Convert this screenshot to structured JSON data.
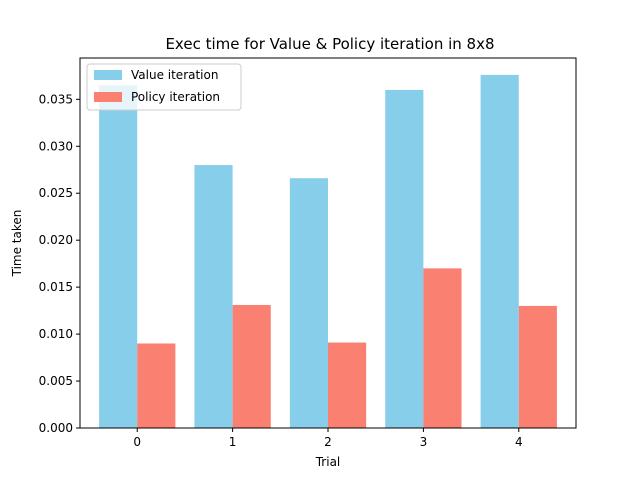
{
  "chart_data": {
    "type": "bar",
    "title": "Exec time for Value & Policy iteration in 8x8",
    "xlabel": "Trial",
    "ylabel": "Time taken",
    "categories": [
      "0",
      "1",
      "2",
      "3",
      "4"
    ],
    "series": [
      {
        "name": "Value iteration",
        "color": "#87ceeb",
        "values": [
          0.0365,
          0.028,
          0.0266,
          0.036,
          0.0376
        ]
      },
      {
        "name": "Policy iteration",
        "color": "#fa8072",
        "values": [
          0.009,
          0.0131,
          0.0091,
          0.017,
          0.013
        ]
      }
    ],
    "ylim": [
      0,
      0.0394
    ],
    "yticks": [
      "0.000",
      "0.005",
      "0.010",
      "0.015",
      "0.020",
      "0.025",
      "0.030",
      "0.035"
    ],
    "grid": false,
    "legend_position": "top-left"
  }
}
